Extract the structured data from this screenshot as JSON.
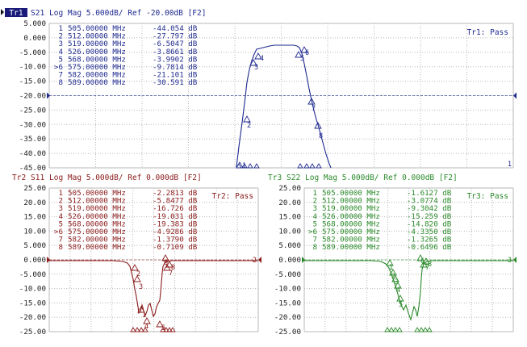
{
  "panels": [
    {
      "id": "tr1",
      "trace_label": "Tr1",
      "measurement": "S21",
      "header_rest": "Log Mag 5.000dB/ Ref -20.00dB [F2]",
      "pass_text": "Tr1: Pass",
      "color": "#1f2a8f",
      "ref_level": -20,
      "ref_label": "1",
      "y_ticks": [
        "5.000",
        "0.000",
        "-5.000",
        "-10.00",
        "-15.00",
        "-20.00",
        "-25.00",
        "-30.00",
        "-35.00",
        "-40.00",
        "-45.00"
      ],
      "markers": [
        {
          "n": "1",
          "freq": "505.00000 MHz",
          "val": "-44.054 dB"
        },
        {
          "n": "2",
          "freq": "512.00000 MHz",
          "val": "-27.797 dB"
        },
        {
          "n": "3",
          "freq": "519.00000 MHz",
          "val": "-6.5047 dB"
        },
        {
          "n": "4",
          "freq": "526.00000 MHz",
          "val": "-3.8661 dB"
        },
        {
          "n": "5",
          "freq": "568.00000 MHz",
          "val": "-3.9902 dB"
        },
        {
          "n": ">6",
          "freq": "575.00000 MHz",
          "val": "-9.7814 dB"
        },
        {
          "n": "7",
          "freq": "582.00000 MHz",
          "val": "-21.101 dB"
        },
        {
          "n": "8",
          "freq": "589.00000 MHz",
          "val": "-30.591 dB"
        }
      ]
    },
    {
      "id": "tr2",
      "trace_label": "Tr2",
      "measurement": "S11",
      "header_rest": "Log Mag 5.000dB/ Ref 0.000dB [F2]",
      "pass_text": "Tr2: Pass",
      "color": "#8b1a1a",
      "ref_level": 0,
      "ref_label": "2",
      "y_ticks": [
        "25.00",
        "20.00",
        "15.00",
        "10.00",
        "5.000",
        "0.000",
        "-5.000",
        "-10.00",
        "-15.00",
        "-20.00",
        "-25.00"
      ],
      "markers": [
        {
          "n": "1",
          "freq": "505.00000 MHz",
          "val": "-2.2813 dB"
        },
        {
          "n": "2",
          "freq": "512.00000 MHz",
          "val": "-5.8477 dB"
        },
        {
          "n": "3",
          "freq": "519.00000 MHz",
          "val": "-16.726 dB"
        },
        {
          "n": "4",
          "freq": "526.00000 MHz",
          "val": "-19.031 dB"
        },
        {
          "n": "5",
          "freq": "568.00000 MHz",
          "val": "-19.383 dB"
        },
        {
          "n": ">6",
          "freq": "575.00000 MHz",
          "val": "-4.9286 dB"
        },
        {
          "n": "7",
          "freq": "582.00000 MHz",
          "val": "-1.3790 dB"
        },
        {
          "n": "8",
          "freq": "589.00000 MHz",
          "val": "-0.7109 dB"
        }
      ]
    },
    {
      "id": "tr3",
      "trace_label": "Tr3",
      "measurement": "S22",
      "header_rest": "Log Mag 5.000dB/ Ref 0.000dB [F2]",
      "pass_text": "Tr3: Pass",
      "color": "#2a8a2a",
      "ref_level": 0,
      "ref_label": "3",
      "y_ticks": [
        "25.00",
        "20.00",
        "15.00",
        "10.00",
        "5.000",
        "0.000",
        "-5.000",
        "-10.00",
        "-15.00",
        "-20.00",
        "-25.00"
      ],
      "markers": [
        {
          "n": "1",
          "freq": "505.00000 MHz",
          "val": "-1.6127 dB"
        },
        {
          "n": "2",
          "freq": "512.00000 MHz",
          "val": "-3.0774 dB"
        },
        {
          "n": "3",
          "freq": "519.00000 MHz",
          "val": "-9.3042 dB"
        },
        {
          "n": "4",
          "freq": "526.00000 MHz",
          "val": "-15.259 dB"
        },
        {
          "n": "5",
          "freq": "568.00000 MHz",
          "val": "-14.820 dB"
        },
        {
          "n": ">6",
          "freq": "575.00000 MHz",
          "val": "-4.3350 dB"
        },
        {
          "n": "7",
          "freq": "582.00000 MHz",
          "val": "-1.3265 dB"
        },
        {
          "n": "8",
          "freq": "589.00000 MHz",
          "val": "-0.6496 dB"
        }
      ]
    }
  ]
}
